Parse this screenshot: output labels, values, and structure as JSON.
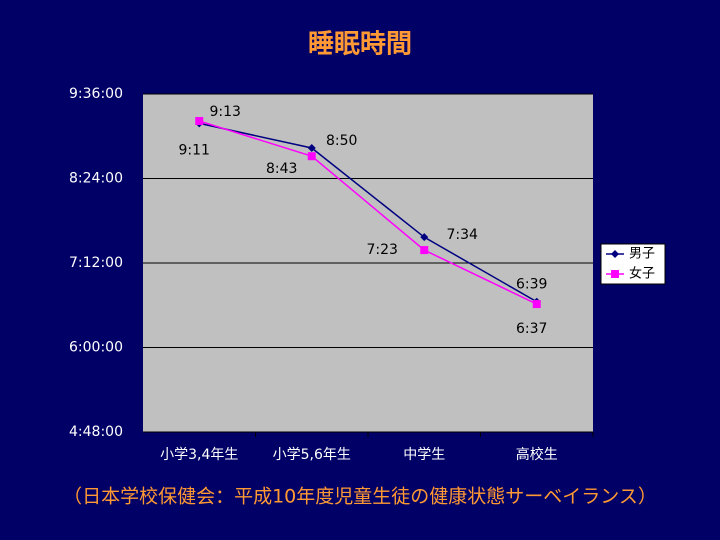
{
  "chart_data": {
    "type": "line",
    "title": "睡眠時間",
    "categories": [
      "小学3,4年生",
      "小学5,6年生",
      "中学生",
      "高校生"
    ],
    "series": [
      {
        "name": "男子",
        "color": "#000080",
        "values": [
          551,
          530,
          454,
          399
        ],
        "value_labels": [
          "9:11",
          "8:50",
          "7:34",
          "6:39"
        ]
      },
      {
        "name": "女子",
        "color": "#ff00ff",
        "values": [
          553,
          523,
          443,
          397
        ],
        "value_labels": [
          "9:13",
          "8:43",
          "7:23",
          "6:37"
        ]
      }
    ],
    "ylim": [
      288,
      576
    ],
    "yticks": [
      {
        "value": 288,
        "label": "4:48:00"
      },
      {
        "value": 360,
        "label": "6:00:00"
      },
      {
        "value": 432,
        "label": "7:12:00"
      },
      {
        "value": 504,
        "label": "8:24:00"
      },
      {
        "value": 576,
        "label": "9:36:00"
      }
    ],
    "grid": true,
    "legend": "right",
    "source": "（日本学校保健会：平成10年度児童生徒の健康状態サーベイランス）"
  }
}
